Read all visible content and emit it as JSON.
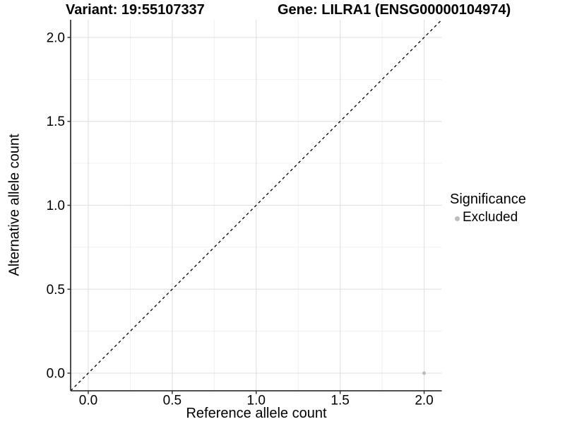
{
  "figure": {
    "variant_title": "Variant: 19:55107337",
    "gene_title": "Gene: LILRA1 (ENSG00000104974)"
  },
  "axes": {
    "x_title": "Reference allele count",
    "y_title": "Alternative allele count"
  },
  "legend": {
    "title": "Significance",
    "items": [
      {
        "label": "Excluded",
        "color": "#bdbdbd"
      }
    ]
  },
  "chart_data": {
    "type": "scatter",
    "title": "Variant: 19:55107337   Gene: LILRA1 (ENSG00000104974)",
    "xlabel": "Reference allele count",
    "ylabel": "Alternative allele count",
    "xlim": [
      -0.105,
      2.105
    ],
    "ylim": [
      -0.105,
      2.105
    ],
    "x_ticks": [
      0,
      0.5,
      1,
      1.5,
      2
    ],
    "x_tick_labels": [
      "0.0",
      "0.5",
      "1.0",
      "1.5",
      "2.0"
    ],
    "y_ticks": [
      0,
      0.5,
      1,
      1.5,
      2
    ],
    "y_tick_labels": [
      "0.0",
      "0.5",
      "1.0",
      "1.5",
      "2.0"
    ],
    "minor_ticks": [
      0.25,
      0.75,
      1.25,
      1.75
    ],
    "grid": "major+minor",
    "legend_position": "right",
    "series": [
      {
        "name": "Excluded",
        "color": "#bdbdbd",
        "points": [
          {
            "x": 2.0,
            "y": 0.0
          }
        ]
      }
    ],
    "reference_line": {
      "slope": 1,
      "intercept": 0,
      "linetype": "dashed",
      "color": "#000000"
    }
  },
  "style": {
    "background": "#ffffff",
    "axis_line_color": "#383838",
    "major_grid_color": "#e2e2e2",
    "minor_grid_color": "#f0f0f0",
    "tick_label_color": "#000000",
    "tick_mark_color": "#333333"
  }
}
